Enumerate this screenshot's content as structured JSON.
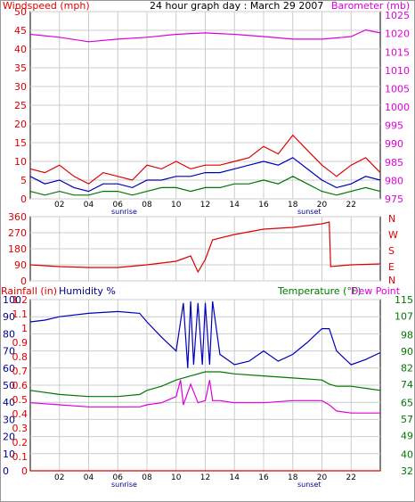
{
  "colors": {
    "red": "#dd0000",
    "magenta": "#dd00dd",
    "blue": "#0000bb",
    "green": "#007700",
    "grid": "#cccccc",
    "label_blue": "#000088"
  },
  "shared": {
    "hour_ticks": [
      "02",
      "04",
      "06",
      "08",
      "10",
      "12",
      "14",
      "16",
      "18",
      "20",
      "22"
    ],
    "sunrise_label": "sunrise",
    "sunset_label": "sunset"
  },
  "chart_data": [
    {
      "type": "line",
      "title": "24 hour graph day : March 29 2007",
      "left_axis_label": "Windspeed (mph)",
      "right_axis_label": "Barometer (mb)",
      "left_ticks": [
        0,
        5,
        10,
        15,
        20,
        25,
        30,
        35,
        40,
        45,
        50
      ],
      "right_ticks": [
        975,
        980,
        985,
        990,
        995,
        1000,
        1005,
        1010,
        1015,
        1020,
        1025
      ],
      "ylim_left": [
        0,
        50
      ],
      "ylim_right": [
        975,
        1026
      ],
      "x_range_hours": [
        0,
        24
      ],
      "series": [
        {
          "axis": "right",
          "color": "magenta",
          "x": [
            0,
            2,
            4,
            6,
            8,
            10,
            12,
            14,
            16,
            18,
            20,
            22,
            23,
            24
          ],
          "y": [
            1019.8,
            1019,
            1017.8,
            1018.5,
            1019,
            1019.8,
            1020.2,
            1019.8,
            1019.2,
            1018.5,
            1018.5,
            1019.2,
            1021,
            1020.2
          ]
        },
        {
          "axis": "left",
          "color": "red",
          "x": [
            0,
            1,
            2,
            3,
            4,
            5,
            6,
            7,
            8,
            9,
            10,
            11,
            12,
            13,
            14,
            15,
            16,
            17,
            18,
            19,
            20,
            21,
            22,
            23,
            24
          ],
          "y": [
            8,
            7,
            9,
            6,
            4,
            7,
            6,
            5,
            9,
            8,
            10,
            8,
            9,
            9,
            10,
            11,
            14,
            12,
            17,
            13,
            9,
            6,
            9,
            11,
            7
          ]
        },
        {
          "axis": "left",
          "color": "blue",
          "x": [
            0,
            1,
            2,
            3,
            4,
            5,
            6,
            7,
            8,
            9,
            10,
            11,
            12,
            13,
            14,
            15,
            16,
            17,
            18,
            19,
            20,
            21,
            22,
            23,
            24
          ],
          "y": [
            6,
            4,
            5,
            3,
            2,
            4,
            4,
            3,
            5,
            5,
            6,
            6,
            7,
            7,
            8,
            9,
            10,
            9,
            11,
            8,
            5,
            3,
            4,
            6,
            5
          ]
        },
        {
          "axis": "left",
          "color": "green",
          "x": [
            0,
            1,
            2,
            3,
            4,
            5,
            6,
            7,
            8,
            9,
            10,
            11,
            12,
            13,
            14,
            15,
            16,
            17,
            18,
            19,
            20,
            21,
            22,
            23,
            24
          ],
          "y": [
            2,
            1,
            2,
            1,
            1,
            2,
            2,
            1,
            2,
            3,
            3,
            2,
            3,
            3,
            4,
            4,
            5,
            4,
            6,
            4,
            2,
            1,
            2,
            3,
            2
          ]
        }
      ]
    },
    {
      "type": "line",
      "left_ticks": [
        0,
        90,
        180,
        270,
        360
      ],
      "right_ticks": [
        "N",
        "W",
        "S",
        "E",
        "N"
      ],
      "ylim": [
        0,
        360
      ],
      "x_range_hours": [
        0,
        24
      ],
      "series": [
        {
          "color": "red",
          "x": [
            0,
            2,
            4,
            6,
            8,
            10,
            11,
            11.5,
            12,
            12.5,
            14,
            16,
            18,
            20,
            20.5,
            20.6,
            22,
            24
          ],
          "y": [
            90,
            80,
            75,
            75,
            90,
            110,
            140,
            50,
            120,
            230,
            260,
            290,
            300,
            320,
            330,
            80,
            90,
            95
          ]
        }
      ]
    },
    {
      "type": "line",
      "left_label": "Rainfall (in)",
      "middle_label": "Humidity %",
      "right_label": "Temperature (°F)",
      "right_label2": "Dew Point",
      "humidity_ticks": [
        0,
        10,
        20,
        30,
        40,
        50,
        60,
        70,
        80,
        90,
        100
      ],
      "rainfall_ticks": [
        0.0,
        0.1,
        0.2,
        0.3,
        0.4,
        0.5,
        0.6,
        0.7,
        0.8,
        0.9,
        1.0,
        1.1,
        1.2
      ],
      "temp_ticks": [
        32,
        40,
        49,
        57,
        65,
        74,
        82,
        90,
        98,
        107,
        115
      ],
      "humidity_range": [
        0,
        100
      ],
      "temp_range": [
        32,
        115
      ],
      "x_range_hours": [
        0,
        24
      ],
      "series": [
        {
          "name": "Humidity %",
          "color": "blue",
          "axis": "humidity",
          "x": [
            0,
            1,
            2,
            4,
            6,
            7.5,
            8,
            9,
            10,
            10.5,
            10.8,
            11,
            11.2,
            11.5,
            11.8,
            12,
            12.3,
            12.5,
            13,
            14,
            15,
            16,
            17,
            18,
            19,
            20,
            20.5,
            21,
            22,
            23,
            24
          ],
          "y": [
            87,
            88,
            90,
            92,
            93,
            92,
            87,
            78,
            70,
            98,
            60,
            99,
            62,
            98,
            62,
            98,
            62,
            99,
            68,
            62,
            64,
            70,
            64,
            68,
            75,
            83,
            83,
            70,
            62,
            65,
            69
          ]
        },
        {
          "name": "Temperature (°F)",
          "color": "green",
          "axis": "temp",
          "x": [
            0,
            2,
            4,
            6,
            7.5,
            8,
            9,
            10,
            11,
            12,
            13,
            14,
            16,
            18,
            20,
            20.5,
            21,
            22,
            23,
            24
          ],
          "y": [
            71,
            69,
            68,
            68,
            69,
            71,
            73,
            76,
            78,
            80,
            80,
            79,
            78,
            77,
            76,
            74,
            73,
            73,
            72,
            71
          ]
        },
        {
          "name": "Dew Point",
          "color": "magenta",
          "axis": "temp",
          "x": [
            0,
            2,
            4,
            6,
            7.5,
            8,
            9,
            10,
            10.3,
            10.5,
            11,
            11.5,
            12,
            12.3,
            12.5,
            13,
            14,
            16,
            18,
            20,
            20.5,
            21,
            22,
            24
          ],
          "y": [
            65,
            64,
            63,
            63,
            63,
            64,
            65,
            68,
            76,
            64,
            74,
            65,
            66,
            76,
            66,
            66,
            65,
            65,
            66,
            66,
            64,
            61,
            60,
            60
          ]
        },
        {
          "name": "Rainfall (in)",
          "color": "red",
          "axis": "rainfall",
          "x": [
            0,
            24
          ],
          "y": [
            0,
            0
          ]
        }
      ]
    }
  ]
}
